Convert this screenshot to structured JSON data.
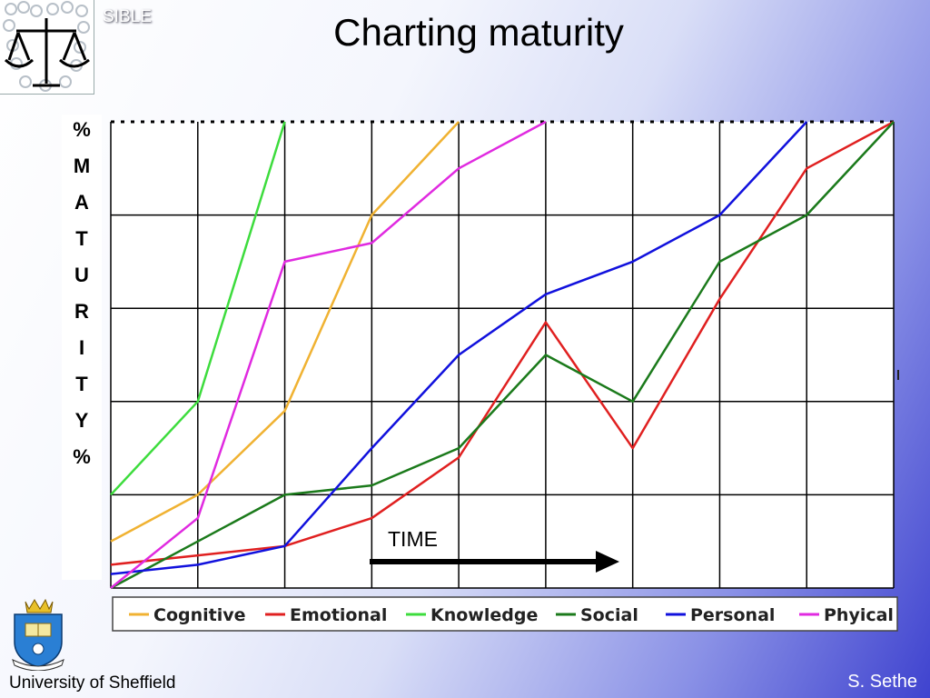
{
  "header": {
    "brand": "SIBLE",
    "title": "Charting maturity"
  },
  "ylabel_letters": [
    "%",
    "M",
    "A",
    "T",
    "U",
    "R",
    "I",
    "T",
    "Y",
    "%"
  ],
  "footer": {
    "university": "University of Sheffield",
    "author": "S. Sethe"
  },
  "logos": {
    "sible": "scales-of-justice-logo",
    "sheffield": "university-crest"
  },
  "chart_data": {
    "type": "line",
    "annotation": "TIME",
    "x": [
      0,
      1,
      2,
      3,
      4,
      5,
      6,
      7,
      8,
      9
    ],
    "xlim": [
      0,
      9
    ],
    "ylim": [
      0,
      100
    ],
    "grid": true,
    "legend": "bottom",
    "series": [
      {
        "name": "Cognitive",
        "color": "#f0b232",
        "x": [
          0,
          1,
          2,
          3,
          4
        ],
        "values": [
          10,
          20,
          38,
          80,
          100
        ]
      },
      {
        "name": "Emotional",
        "color": "#e02020",
        "x": [
          0,
          1,
          2,
          3,
          4,
          5,
          6,
          7,
          8,
          9
        ],
        "values": [
          5,
          7,
          9,
          15,
          28,
          57,
          30,
          62,
          90,
          100
        ]
      },
      {
        "name": "Knowledge",
        "color": "#3ddc3d",
        "x": [
          0,
          1,
          2
        ],
        "values": [
          20,
          40,
          100
        ]
      },
      {
        "name": "Social",
        "color": "#1b7a1b",
        "x": [
          0,
          1,
          2,
          3,
          4,
          5,
          6,
          7,
          8,
          9
        ],
        "values": [
          0,
          10,
          20,
          22,
          30,
          50,
          40,
          70,
          80,
          100
        ]
      },
      {
        "name": "Personal",
        "color": "#1111dd",
        "x": [
          0,
          1,
          2,
          3,
          4,
          5,
          6,
          7,
          8
        ],
        "values": [
          3,
          5,
          9,
          30,
          50,
          63,
          70,
          80,
          100
        ]
      },
      {
        "name": "Phyical",
        "color": "#e02ae0",
        "x": [
          0,
          1,
          2,
          3,
          4,
          5
        ],
        "values": [
          0,
          15,
          70,
          74,
          90,
          100
        ]
      }
    ]
  }
}
